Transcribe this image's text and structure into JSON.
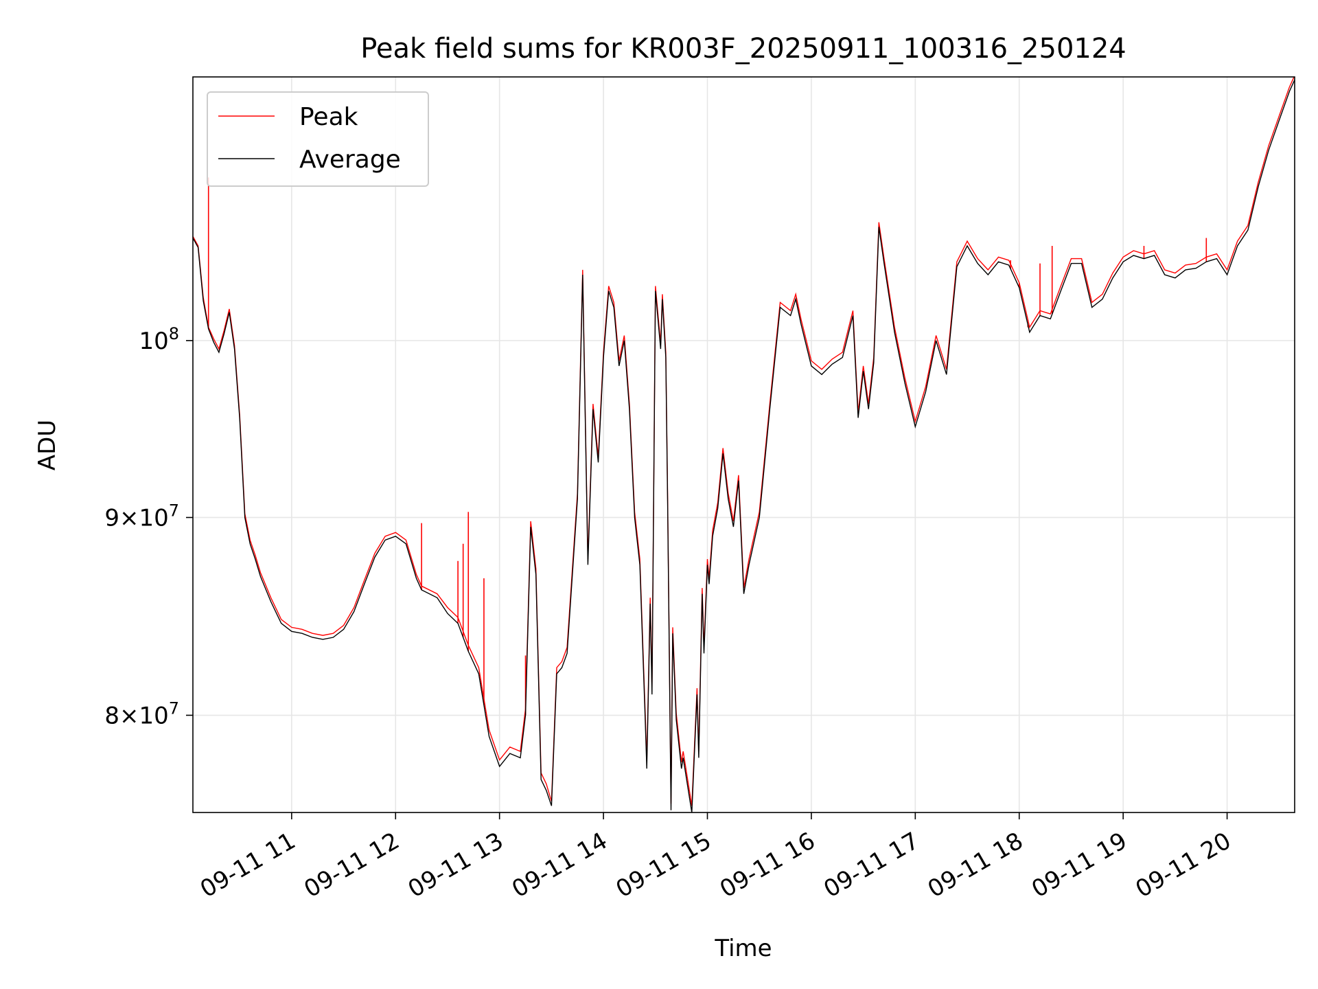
{
  "chart_data": {
    "type": "line",
    "title": "Peak field sums for KR003F_20250911_100316_250124",
    "xlabel": "Time",
    "ylabel": "ADU",
    "yscale": "log",
    "ylim": [
      75500000,
      117000000
    ],
    "xlim": [
      "2025-09-11 10:03",
      "2025-09-11 20:39"
    ],
    "grid": true,
    "legend": "top-left",
    "x_ticks": [
      {
        "t": "2025-09-11 11:00",
        "label": "09-11 11"
      },
      {
        "t": "2025-09-11 12:00",
        "label": "09-11 12"
      },
      {
        "t": "2025-09-11 13:00",
        "label": "09-11 13"
      },
      {
        "t": "2025-09-11 14:00",
        "label": "09-11 14"
      },
      {
        "t": "2025-09-11 15:00",
        "label": "09-11 15"
      },
      {
        "t": "2025-09-11 16:00",
        "label": "09-11 16"
      },
      {
        "t": "2025-09-11 17:00",
        "label": "09-11 17"
      },
      {
        "t": "2025-09-11 18:00",
        "label": "09-11 18"
      },
      {
        "t": "2025-09-11 19:00",
        "label": "09-11 19"
      },
      {
        "t": "2025-09-11 20:00",
        "label": "09-11 20"
      }
    ],
    "y_ticks": [
      {
        "value": 80000000,
        "mantissa": "8",
        "base": "10",
        "exp": "7"
      },
      {
        "value": 90000000,
        "mantissa": "9",
        "base": "10",
        "exp": "7"
      },
      {
        "value": 100000000,
        "mantissa": "",
        "base": "10",
        "exp": "8"
      }
    ],
    "colors": {
      "peak": "#ff0000",
      "average": "#000000",
      "grid": "#e6e6e6"
    },
    "series": [
      {
        "name": "Peak",
        "color": "#ff0000"
      },
      {
        "name": "Average",
        "color": "#000000"
      }
    ],
    "x": [
      "2025-09-11 10:03",
      "2025-09-11 10:06",
      "2025-09-11 10:09",
      "2025-09-11 10:12",
      "2025-09-11 10:15",
      "2025-09-11 10:18",
      "2025-09-11 10:21",
      "2025-09-11 10:24",
      "2025-09-11 10:27",
      "2025-09-11 10:30",
      "2025-09-11 10:33",
      "2025-09-11 10:36",
      "2025-09-11 10:39",
      "2025-09-11 10:42",
      "2025-09-11 10:48",
      "2025-09-11 10:54",
      "2025-09-11 11:00",
      "2025-09-11 11:06",
      "2025-09-11 11:12",
      "2025-09-11 11:18",
      "2025-09-11 11:24",
      "2025-09-11 11:30",
      "2025-09-11 11:36",
      "2025-09-11 11:42",
      "2025-09-11 11:48",
      "2025-09-11 11:54",
      "2025-09-11 12:00",
      "2025-09-11 12:06",
      "2025-09-11 12:12",
      "2025-09-11 12:15",
      "2025-09-11 12:24",
      "2025-09-11 12:30",
      "2025-09-11 12:36",
      "2025-09-11 12:42",
      "2025-09-11 12:48",
      "2025-09-11 12:54",
      "2025-09-11 13:00",
      "2025-09-11 13:06",
      "2025-09-11 13:12",
      "2025-09-11 13:15",
      "2025-09-11 13:18",
      "2025-09-11 13:21",
      "2025-09-11 13:24",
      "2025-09-11 13:27",
      "2025-09-11 13:30",
      "2025-09-11 13:33",
      "2025-09-11 13:36",
      "2025-09-11 13:39",
      "2025-09-11 13:45",
      "2025-09-11 13:48",
      "2025-09-11 13:51",
      "2025-09-11 13:54",
      "2025-09-11 13:57",
      "2025-09-11 14:00",
      "2025-09-11 14:03",
      "2025-09-11 14:06",
      "2025-09-11 14:09",
      "2025-09-11 14:12",
      "2025-09-11 14:15",
      "2025-09-11 14:18",
      "2025-09-11 14:21",
      "2025-09-11 14:24",
      "2025-09-11 14:25",
      "2025-09-11 14:27",
      "2025-09-11 14:28",
      "2025-09-11 14:30",
      "2025-09-11 14:33",
      "2025-09-11 14:34",
      "2025-09-11 14:36",
      "2025-09-11 14:37",
      "2025-09-11 14:39",
      "2025-09-11 14:40",
      "2025-09-11 14:42",
      "2025-09-11 14:45",
      "2025-09-11 14:46",
      "2025-09-11 14:48",
      "2025-09-11 14:51",
      "2025-09-11 14:54",
      "2025-09-11 14:55",
      "2025-09-11 14:57",
      "2025-09-11 14:58",
      "2025-09-11 15:00",
      "2025-09-11 15:01",
      "2025-09-11 15:03",
      "2025-09-11 15:06",
      "2025-09-11 15:09",
      "2025-09-11 15:12",
      "2025-09-11 15:15",
      "2025-09-11 15:18",
      "2025-09-11 15:21",
      "2025-09-11 15:24",
      "2025-09-11 15:30",
      "2025-09-11 15:36",
      "2025-09-11 15:42",
      "2025-09-11 15:48",
      "2025-09-11 15:51",
      "2025-09-11 15:54",
      "2025-09-11 16:00",
      "2025-09-11 16:06",
      "2025-09-11 16:12",
      "2025-09-11 16:18",
      "2025-09-11 16:24",
      "2025-09-11 16:27",
      "2025-09-11 16:30",
      "2025-09-11 16:33",
      "2025-09-11 16:36",
      "2025-09-11 16:39",
      "2025-09-11 16:42",
      "2025-09-11 16:48",
      "2025-09-11 16:54",
      "2025-09-11 17:00",
      "2025-09-11 17:06",
      "2025-09-11 17:12",
      "2025-09-11 17:18",
      "2025-09-11 17:24",
      "2025-09-11 17:30",
      "2025-09-11 17:36",
      "2025-09-11 17:42",
      "2025-09-11 17:48",
      "2025-09-11 17:54",
      "2025-09-11 18:00",
      "2025-09-11 18:06",
      "2025-09-11 18:12",
      "2025-09-11 18:18",
      "2025-09-11 18:24",
      "2025-09-11 18:30",
      "2025-09-11 18:36",
      "2025-09-11 18:42",
      "2025-09-11 18:48",
      "2025-09-11 18:54",
      "2025-09-11 19:00",
      "2025-09-11 19:06",
      "2025-09-11 19:12",
      "2025-09-11 19:18",
      "2025-09-11 19:24",
      "2025-09-11 19:30",
      "2025-09-11 19:36",
      "2025-09-11 19:42",
      "2025-09-11 19:48",
      "2025-09-11 19:54",
      "2025-09-11 20:00",
      "2025-09-11 20:06",
      "2025-09-11 20:12",
      "2025-09-11 20:18",
      "2025-09-11 20:24",
      "2025-09-11 20:30",
      "2025-09-11 20:36",
      "2025-09-11 20:39"
    ],
    "average": [
      106300000,
      105700000,
      102400000,
      100700000,
      99900000,
      99300000,
      100400000,
      101700000,
      99500000,
      95500000,
      90000000,
      88600000,
      87800000,
      86900000,
      85600000,
      84500000,
      84100000,
      84000000,
      83800000,
      83700000,
      83800000,
      84200000,
      85100000,
      86500000,
      87900000,
      88800000,
      89000000,
      88600000,
      86800000,
      86200000,
      85800000,
      85000000,
      84500000,
      83100000,
      82000000,
      79000000,
      77600000,
      78200000,
      78000000,
      80000000,
      89500000,
      87000000,
      77000000,
      76500000,
      75800000,
      82000000,
      82300000,
      83000000,
      91000000,
      104000000,
      87500000,
      96000000,
      93000000,
      99000000,
      103000000,
      102000000,
      98500000,
      100000000,
      96000000,
      90000000,
      87500000,
      80000000,
      77500000,
      85500000,
      81000000,
      103000000,
      99500000,
      102500000,
      99000000,
      91000000,
      75600000,
      84000000,
      79800000,
      77500000,
      78000000,
      77000000,
      75500000,
      81000000,
      78000000,
      86000000,
      83000000,
      87500000,
      86500000,
      89000000,
      90500000,
      93500000,
      91000000,
      89500000,
      92000000,
      86000000,
      87500000,
      90000000,
      96000000,
      102000000,
      101500000,
      102500000,
      101000000,
      98500000,
      98000000,
      98600000,
      99000000,
      101500000,
      95500000,
      98200000,
      96000000,
      98700000,
      107000000,
      104700000,
      100500000,
      97500000,
      95000000,
      97000000,
      100000000,
      98000000,
      104500000,
      105800000,
      104700000,
      104000000,
      104800000,
      104600000,
      103200000,
      100500000,
      101500000,
      101300000,
      103000000,
      104700000,
      104700000,
      102000000,
      102500000,
      103800000,
      104800000,
      105200000,
      105000000,
      105200000,
      104000000,
      103800000,
      104300000,
      104400000,
      104800000,
      105000000,
      104000000,
      105800000,
      106800000,
      109600000,
      112000000,
      114000000,
      116000000,
      116800000
    ],
    "peak": [
      106400000,
      105800000,
      102600000,
      100800000,
      100100000,
      99500000,
      100600000,
      101900000,
      99700000,
      95700000,
      90200000,
      88800000,
      88000000,
      87100000,
      85800000,
      84700000,
      84300000,
      84200000,
      84000000,
      83900000,
      84000000,
      84400000,
      85300000,
      86700000,
      88100000,
      89000000,
      89200000,
      88800000,
      87000000,
      86400000,
      86000000,
      85300000,
      84800000,
      83400000,
      82300000,
      79300000,
      77900000,
      78500000,
      78300000,
      80300000,
      89800000,
      87300000,
      77300000,
      76800000,
      76000000,
      82300000,
      82600000,
      83300000,
      91300000,
      104300000,
      87800000,
      96300000,
      93300000,
      99300000,
      103300000,
      102300000,
      98800000,
      100300000,
      96300000,
      90300000,
      87800000,
      80300000,
      77800000,
      85800000,
      81300000,
      103300000,
      99800000,
      102800000,
      99300000,
      91300000,
      75900000,
      84300000,
      80100000,
      77800000,
      78300000,
      77300000,
      75800000,
      81300000,
      78300000,
      86300000,
      83300000,
      87800000,
      86800000,
      89300000,
      90800000,
      93800000,
      91300000,
      89800000,
      92300000,
      86300000,
      87800000,
      90300000,
      96300000,
      102300000,
      101800000,
      102800000,
      101300000,
      98800000,
      98300000,
      98900000,
      99300000,
      101800000,
      95800000,
      98500000,
      96300000,
      99000000,
      107300000,
      105000000,
      100800000,
      97800000,
      95300000,
      97300000,
      100300000,
      98300000,
      104800000,
      106100000,
      105000000,
      104300000,
      105100000,
      104900000,
      103500000,
      100800000,
      101800000,
      101600000,
      103300000,
      105000000,
      105000000,
      102300000,
      102800000,
      104100000,
      105100000,
      105500000,
      105300000,
      105500000,
      104300000,
      104100000,
      104600000,
      104700000,
      105100000,
      105300000,
      104300000,
      106100000,
      107100000,
      109900000,
      112300000,
      114300000,
      116300000,
      117100000
    ],
    "peak_spikes": [
      {
        "t": "2025-09-11 10:12",
        "value": 110200000
      },
      {
        "t": "2025-09-11 12:15",
        "value": 89700000
      },
      {
        "t": "2025-09-11 12:36",
        "value": 87700000
      },
      {
        "t": "2025-09-11 12:39",
        "value": 88600000
      },
      {
        "t": "2025-09-11 12:42",
        "value": 90300000
      },
      {
        "t": "2025-09-11 12:51",
        "value": 86800000
      },
      {
        "t": "2025-09-11 13:15",
        "value": 82900000
      },
      {
        "t": "2025-09-11 17:55",
        "value": 104900000
      },
      {
        "t": "2025-09-11 18:00",
        "value": 103500000
      },
      {
        "t": "2025-09-11 18:05",
        "value": 100800000
      },
      {
        "t": "2025-09-11 18:12",
        "value": 104700000
      },
      {
        "t": "2025-09-11 18:19",
        "value": 105800000
      },
      {
        "t": "2025-09-11 19:12",
        "value": 105800000
      },
      {
        "t": "2025-09-11 19:48",
        "value": 106300000
      }
    ]
  }
}
